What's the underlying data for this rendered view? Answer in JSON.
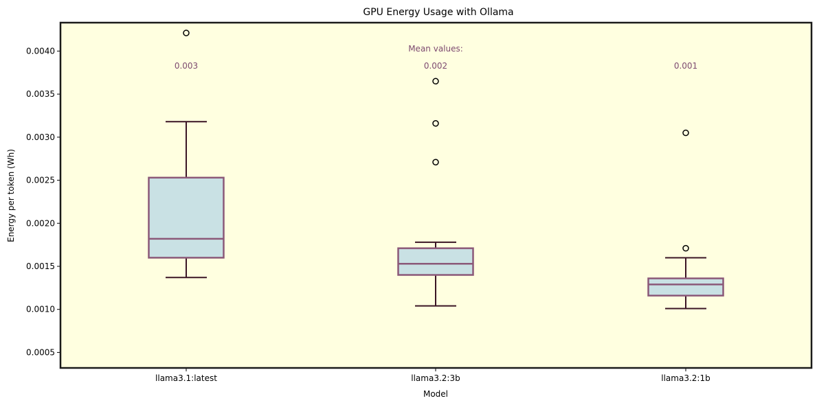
{
  "chart_data": {
    "type": "box",
    "title": "GPU Energy Usage with Ollama",
    "xlabel": "Model",
    "ylabel": "Energy per token (Wh)",
    "ylim": [
      0.00032,
      0.00433
    ],
    "yticks": [
      0.0005,
      0.001,
      0.0015,
      0.002,
      0.0025,
      0.003,
      0.0035,
      0.004
    ],
    "ytick_labels": [
      "0.0005",
      "0.0010",
      "0.0015",
      "0.0020",
      "0.0025",
      "0.0030",
      "0.0035",
      "0.0040"
    ],
    "grid": false,
    "categories": [
      "llama3.1:latest",
      "llama3.2:3b",
      "llama3.2:1b"
    ],
    "boxes": [
      {
        "whisker_low": 0.00137,
        "q1": 0.0016,
        "median": 0.00182,
        "q3": 0.00253,
        "whisker_high": 0.00318,
        "outliers": [
          0.00421
        ]
      },
      {
        "whisker_low": 0.00104,
        "q1": 0.0014,
        "median": 0.00153,
        "q3": 0.00171,
        "whisker_high": 0.00178,
        "outliers": [
          0.00271,
          0.00316,
          0.00365
        ]
      },
      {
        "whisker_low": 0.00101,
        "q1": 0.00116,
        "median": 0.00129,
        "q3": 0.00136,
        "whisker_high": 0.0016,
        "outliers": [
          0.00171,
          0.00305
        ]
      }
    ],
    "mean_header": "Mean values:",
    "mean_labels": [
      "0.003",
      "0.002",
      "0.001"
    ],
    "colors": {
      "plot_background": "#ffffe0",
      "box_fill": "#c9e1e4",
      "box_edge": "#8b5878",
      "median": "#8b5878",
      "whisker": "#3a1424",
      "mean_text": "#7d4a70",
      "frame": "#1a1a1a"
    }
  }
}
